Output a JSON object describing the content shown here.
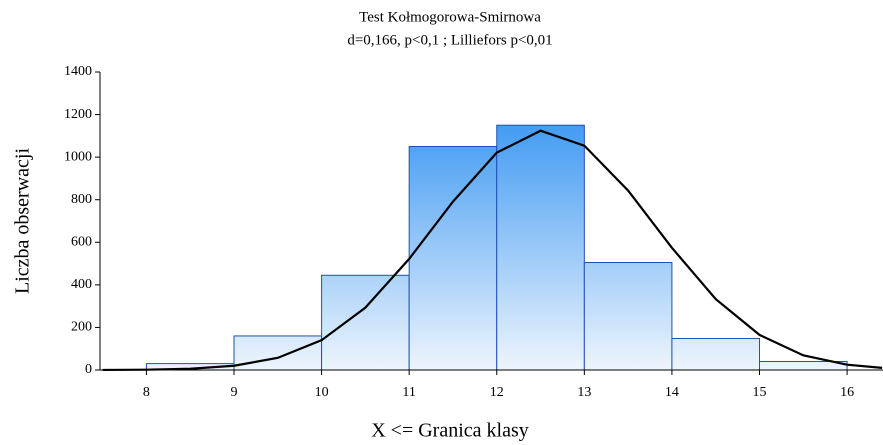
{
  "chart_data": {
    "type": "histogram",
    "title": "Test Kołmogorowa-Smirnowa",
    "subtitle": "d=0,166, p<0,1 ; Lilliefors p<0,01",
    "x_label": "X <= Granica klasy",
    "y_label": "Liczba obserwacji",
    "bins": [
      8,
      9,
      10,
      11,
      12,
      13,
      14,
      15,
      16
    ],
    "values": [
      30,
      160,
      445,
      1050,
      1150,
      505,
      148,
      40
    ],
    "color_top": "#1e88f0",
    "color_bottom": "#eef5fd",
    "edge_color": "#2050b8",
    "curve": {
      "color": "#000000",
      "x": [
        7.5,
        8,
        8.5,
        9,
        9.5,
        10,
        10.5,
        11,
        11.5,
        12,
        12.5,
        13,
        13.5,
        14,
        14.5,
        15,
        15.5,
        16,
        16.4
      ],
      "values": [
        0.3,
        1.5,
        5.9,
        20,
        57,
        140,
        293,
        522,
        791,
        1021,
        1124,
        1054,
        843,
        574,
        333,
        165,
        69,
        25,
        10
      ]
    },
    "xlim": [
      7.47,
      16.41
    ],
    "ylim": [
      0,
      1400
    ],
    "xticks": [
      8,
      9,
      10,
      11,
      12,
      13,
      14,
      15,
      16
    ],
    "yticks": [
      0,
      200,
      400,
      600,
      800,
      1000,
      1200,
      1400
    ]
  }
}
